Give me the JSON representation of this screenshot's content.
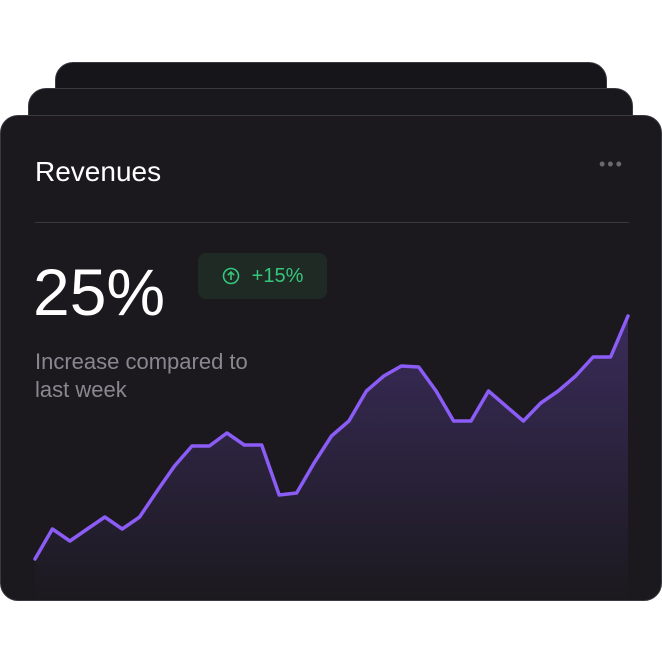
{
  "card": {
    "title": "Revenues",
    "value": "25%",
    "change": "+15%",
    "caption": "Increase compared to last week"
  },
  "chart_data": {
    "type": "line",
    "color": "#8b5cf6",
    "values": [
      42,
      72,
      60,
      72,
      84,
      72,
      84,
      110,
      135,
      155,
      155,
      168,
      156,
      156,
      106,
      108,
      138,
      165,
      180,
      210,
      225,
      235,
      234,
      210,
      180,
      180,
      210,
      195,
      180,
      198,
      210,
      225,
      244,
      244,
      285
    ],
    "ylim": [
      0,
      300
    ]
  }
}
